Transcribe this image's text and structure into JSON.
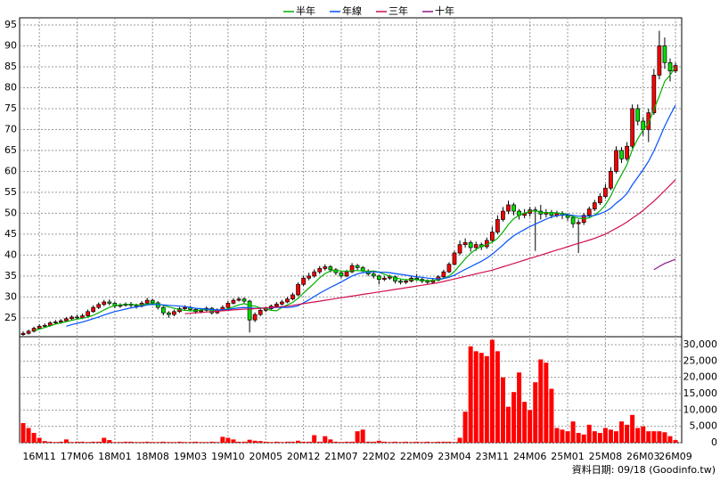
{
  "chart_data": {
    "type": "candlestick",
    "source": "資料日期: 09/18 (Goodinfo.tw)",
    "categories": [
      null,
      null,
      null,
      "16M11",
      null,
      null,
      null,
      null,
      null,
      null,
      "17M06",
      null,
      null,
      null,
      null,
      null,
      null,
      "18M01",
      null,
      null,
      null,
      null,
      null,
      null,
      "18M08",
      null,
      null,
      null,
      null,
      null,
      null,
      "19M03",
      null,
      null,
      null,
      null,
      null,
      null,
      "19M10",
      null,
      null,
      null,
      null,
      null,
      null,
      "20M05",
      null,
      null,
      null,
      null,
      null,
      null,
      "20M12",
      null,
      null,
      null,
      null,
      null,
      null,
      "21M07",
      null,
      null,
      null,
      null,
      null,
      null,
      "22M02",
      null,
      null,
      null,
      null,
      null,
      null,
      "22M09",
      null,
      null,
      null,
      null,
      null,
      null,
      "23M04",
      null,
      null,
      null,
      null,
      null,
      null,
      "23M11",
      null,
      null,
      null,
      null,
      null,
      null,
      "24M06",
      null,
      null,
      null,
      null,
      null,
      null,
      "25M01",
      null,
      null,
      null,
      null,
      null,
      null,
      "25M08",
      null,
      null,
      null,
      null,
      null,
      null,
      "26M03",
      null,
      null,
      null,
      null,
      null,
      "26M09"
    ],
    "open": [
      21.0,
      21.3,
      21.8,
      22.5,
      23.0,
      23.2,
      23.8,
      24.0,
      24.3,
      24.8,
      25.2,
      25.0,
      25.5,
      26.5,
      27.5,
      28.2,
      28.8,
      28.5,
      27.8,
      28.0,
      28.3,
      28.0,
      27.8,
      28.5,
      29.2,
      28.6,
      27.5,
      26.2,
      25.8,
      26.5,
      27.2,
      27.5,
      27.0,
      26.5,
      26.8,
      27.3,
      26.2,
      26.9,
      27.5,
      28.5,
      29.2,
      29.5,
      29.0,
      24.5,
      25.8,
      26.8,
      27.2,
      27.8,
      28.3,
      28.8,
      29.5,
      30.5,
      33.0,
      34.5,
      35.0,
      36.0,
      36.8,
      37.2,
      36.5,
      35.8,
      35.0,
      36.0,
      37.5,
      37.0,
      36.2,
      35.5,
      35.0,
      34.2,
      34.5,
      34.8,
      33.8,
      33.5,
      33.8,
      34.5,
      34.2,
      33.8,
      33.5,
      34.0,
      34.8,
      36.0,
      37.8,
      40.5,
      42.5,
      43.0,
      41.8,
      42.5,
      42.0,
      43.5,
      45.5,
      48.5,
      50.5,
      52.0,
      50.5,
      49.5,
      50.0,
      50.8,
      50.5,
      49.8,
      50.2,
      49.5,
      50.0,
      49.5,
      49.0,
      47.5,
      47.8,
      49.5,
      51.0,
      52.5,
      54.0,
      56.0,
      60.0,
      65.0,
      63.0,
      66.0,
      75.0,
      72.0,
      70.0,
      74.0,
      83.0,
      90.0,
      86.0,
      84.0
    ],
    "high": [
      21.8,
      22.2,
      22.9,
      23.5,
      23.7,
      24.2,
      24.5,
      24.7,
      25.2,
      25.6,
      25.7,
      26.0,
      27.0,
      28.0,
      28.7,
      29.3,
      29.4,
      28.9,
      28.5,
      28.7,
      28.8,
      28.4,
      29.0,
      29.8,
      29.6,
      29.0,
      27.8,
      26.6,
      27.0,
      27.6,
      28.0,
      27.9,
      27.3,
      27.2,
      27.7,
      27.6,
      27.3,
      28.0,
      29.0,
      29.7,
      30.0,
      29.9,
      29.3,
      26.3,
      27.2,
      27.7,
      28.2,
      28.8,
      29.3,
      30.0,
      31.0,
      33.5,
      35.0,
      35.8,
      36.6,
      37.4,
      37.8,
      37.6,
      36.9,
      36.2,
      36.5,
      38.1,
      37.9,
      37.4,
      36.6,
      36.0,
      35.3,
      35.0,
      35.3,
      35.1,
      34.2,
      34.3,
      35.0,
      35.5,
      34.6,
      34.2,
      34.5,
      35.2,
      36.5,
      38.3,
      41.0,
      43.5,
      44.0,
      43.5,
      43.2,
      43.0,
      44.2,
      46.8,
      49.5,
      51.5,
      53.0,
      52.5,
      51.0,
      51.0,
      51.5,
      51.5,
      52.0,
      51.0,
      50.8,
      50.6,
      50.5,
      50.0,
      49.5,
      48.5,
      50.0,
      51.6,
      53.2,
      54.8,
      57.0,
      61.0,
      66.0,
      65.8,
      67.0,
      76.0,
      76.0,
      73.0,
      75.0,
      84.5,
      93.6,
      92.0,
      87.0,
      86.0
    ],
    "low": [
      20.7,
      21.0,
      21.5,
      22.2,
      22.7,
      22.9,
      23.5,
      23.6,
      24.0,
      24.5,
      24.6,
      24.7,
      25.2,
      26.2,
      27.1,
      27.8,
      28.0,
      27.3,
      27.4,
      27.7,
      27.5,
      27.2,
      27.5,
      28.2,
      28.0,
      27.0,
      25.6,
      25.0,
      25.4,
      26.2,
      26.8,
      26.6,
      26.0,
      26.1,
      26.5,
      25.8,
      25.9,
      26.6,
      27.2,
      28.2,
      28.9,
      28.5,
      21.5,
      24.0,
      25.4,
      26.4,
      26.9,
      27.5,
      28.0,
      28.5,
      29.2,
      30.2,
      32.6,
      34.0,
      34.6,
      35.5,
      36.3,
      35.9,
      35.2,
      34.5,
      34.7,
      35.7,
      36.4,
      35.7,
      35.0,
      34.4,
      33.0,
      33.8,
      34.1,
      33.2,
      33.0,
      33.1,
      33.5,
      33.8,
      33.3,
      33.0,
      33.1,
      33.7,
      34.5,
      35.7,
      37.5,
      40.0,
      41.8,
      40.8,
      41.0,
      41.2,
      41.5,
      43.0,
      45.0,
      48.0,
      49.8,
      49.5,
      48.5,
      48.8,
      49.2,
      41.0,
      48.5,
      49.0,
      48.8,
      49.0,
      48.6,
      48.2,
      46.5,
      40.5,
      47.2,
      49.0,
      50.5,
      52.0,
      53.5,
      55.5,
      59.5,
      62.0,
      62.5,
      65.5,
      71.0,
      68.5,
      67.0,
      73.5,
      82.0,
      84.5,
      81.5,
      83.5
    ],
    "close": [
      21.3,
      21.8,
      22.5,
      23.0,
      23.2,
      23.8,
      24.0,
      24.3,
      24.8,
      25.2,
      25.0,
      25.5,
      26.5,
      27.5,
      28.2,
      28.8,
      28.5,
      27.8,
      28.0,
      28.3,
      28.0,
      27.8,
      28.5,
      29.2,
      28.6,
      27.5,
      26.2,
      25.8,
      26.5,
      27.2,
      27.5,
      27.0,
      26.5,
      26.8,
      27.3,
      26.2,
      26.9,
      27.5,
      28.5,
      29.2,
      29.5,
      29.0,
      24.5,
      25.8,
      26.8,
      27.2,
      27.8,
      28.3,
      28.8,
      29.5,
      30.5,
      33.0,
      34.5,
      35.0,
      36.0,
      36.8,
      37.2,
      36.5,
      35.8,
      35.0,
      36.0,
      37.5,
      37.0,
      36.2,
      35.5,
      35.0,
      34.2,
      34.5,
      34.8,
      33.8,
      33.5,
      33.8,
      34.5,
      34.2,
      33.8,
      33.5,
      34.0,
      34.8,
      36.0,
      37.8,
      40.5,
      42.5,
      43.0,
      41.8,
      42.5,
      42.0,
      43.5,
      45.5,
      48.5,
      50.5,
      52.0,
      50.5,
      49.5,
      50.0,
      50.8,
      50.5,
      49.8,
      50.2,
      49.5,
      50.0,
      49.5,
      49.0,
      47.5,
      47.8,
      49.5,
      51.0,
      52.5,
      54.0,
      56.0,
      60.0,
      65.0,
      63.0,
      66.0,
      75.0,
      72.0,
      70.0,
      74.0,
      83.0,
      90.0,
      86.0,
      84.0,
      85.3
    ],
    "volume": [
      6000,
      4500,
      3000,
      1500,
      500,
      300,
      200,
      300,
      1000,
      200,
      300,
      300,
      200,
      300,
      300,
      1500,
      800,
      200,
      200,
      300,
      300,
      200,
      200,
      300,
      200,
      200,
      300,
      200,
      200,
      300,
      200,
      200,
      300,
      200,
      200,
      300,
      200,
      1800,
      1500,
      1000,
      300,
      300,
      900,
      600,
      500,
      300,
      200,
      300,
      200,
      300,
      300,
      600,
      300,
      300,
      2300,
      300,
      2000,
      1000,
      300,
      200,
      300,
      300,
      3500,
      4000,
      300,
      300,
      600,
      300,
      200,
      300,
      200,
      300,
      200,
      300,
      200,
      300,
      200,
      300,
      300,
      300,
      200,
      1500,
      9500,
      29500,
      28000,
      27500,
      26500,
      31500,
      28000,
      20000,
      11000,
      15500,
      21500,
      12500,
      10000,
      18500,
      25500,
      24500,
      16500,
      4500,
      4000,
      3500,
      6500,
      3000,
      2500,
      5500,
      3500,
      3000,
      4500,
      4000,
      3500,
      6500,
      5500,
      8500,
      4500,
      5000,
      3500,
      3500,
      3500,
      3200,
      2000,
      800
    ],
    "up_color": "#ff0000",
    "down_color": "#00e000",
    "volume_color": "#ff0000",
    "series": [
      {
        "name": "半年",
        "color": "#00b000",
        "values": [
          null,
          null,
          21.9,
          22.3,
          22.7,
          23.1,
          23.5,
          23.8,
          24.1,
          24.4,
          24.7,
          24.9,
          25.2,
          25.6,
          26.2,
          26.9,
          27.5,
          27.9,
          28.1,
          28.2,
          28.2,
          28.1,
          28.1,
          28.3,
          28.4,
          28.3,
          28.0,
          27.6,
          27.3,
          27.0,
          26.8,
          26.7,
          26.7,
          26.9,
          27.0,
          26.9,
          26.8,
          26.9,
          27.2,
          27.6,
          28.1,
          28.4,
          28.0,
          27.8,
          27.4,
          27.2,
          26.8,
          26.7,
          27.5,
          28.1,
          28.7,
          29.7,
          30.9,
          32.1,
          33.3,
          34.6,
          35.6,
          36.2,
          36.4,
          36.2,
          36.1,
          36.3,
          36.3,
          36.2,
          36.1,
          36.2,
          35.9,
          35.4,
          35.0,
          34.6,
          34.3,
          34.1,
          34.2,
          34.1,
          34.0,
          33.9,
          33.9,
          34.1,
          34.4,
          35.0,
          36.1,
          37.6,
          39.1,
          40.4,
          41.4,
          42.0,
          42.5,
          43.1,
          44.0,
          45.5,
          47.3,
          48.7,
          49.5,
          50.0,
          50.5,
          50.6,
          50.2,
          50.1,
          50.1,
          50.1,
          49.9,
          49.7,
          49.2,
          48.8,
          48.7,
          48.9,
          49.6,
          50.6,
          52.0,
          54.1,
          56.9,
          59.2,
          61.6,
          65.2,
          67.8,
          69.9,
          71.5,
          74.8,
          78.0,
          81.5,
          83.0,
          85.0
        ]
      },
      {
        "name": "年線",
        "color": "#0050ff",
        "values": [
          null,
          null,
          null,
          null,
          null,
          null,
          null,
          null,
          23.0,
          23.4,
          23.7,
          24.0,
          24.4,
          24.8,
          25.2,
          25.7,
          26.1,
          26.5,
          26.8,
          27.1,
          27.4,
          27.6,
          27.8,
          28.1,
          28.2,
          28.2,
          28.1,
          28.0,
          27.9,
          27.8,
          27.7,
          27.5,
          27.3,
          27.2,
          27.1,
          27.0,
          26.9,
          26.9,
          27.0,
          27.2,
          27.4,
          27.5,
          27.4,
          27.3,
          27.3,
          27.4,
          27.4,
          27.5,
          27.5,
          27.5,
          27.6,
          27.9,
          28.6,
          29.3,
          30.1,
          30.9,
          31.6,
          32.3,
          32.9,
          33.6,
          34.3,
          35.0,
          35.5,
          35.8,
          35.9,
          36.0,
          35.9,
          35.9,
          35.8,
          35.6,
          35.4,
          35.2,
          35.0,
          34.8,
          34.7,
          34.5,
          34.4,
          34.3,
          34.4,
          34.7,
          35.2,
          35.9,
          36.6,
          37.2,
          37.9,
          38.5,
          39.3,
          40.2,
          41.3,
          42.4,
          43.6,
          44.6,
          45.4,
          46.1,
          46.8,
          47.4,
          48.0,
          48.6,
          49.1,
          49.4,
          49.6,
          49.7,
          49.5,
          49.3,
          49.3,
          49.3,
          49.5,
          49.9,
          50.4,
          51.2,
          52.4,
          53.4,
          54.7,
          56.8,
          58.6,
          60.4,
          62.4,
          64.9,
          67.8,
          70.8,
          73.4,
          75.8
        ]
      },
      {
        "name": "三年",
        "color": "#d0104a",
        "values": [
          null,
          null,
          null,
          null,
          null,
          null,
          null,
          null,
          null,
          null,
          null,
          null,
          null,
          null,
          null,
          null,
          null,
          null,
          null,
          null,
          null,
          null,
          null,
          null,
          null,
          null,
          null,
          null,
          null,
          null,
          26.0,
          26.1,
          26.2,
          26.3,
          26.4,
          26.5,
          26.6,
          26.7,
          26.8,
          26.9,
          27.0,
          27.1,
          27.1,
          27.2,
          27.3,
          27.4,
          27.5,
          27.6,
          27.7,
          27.8,
          28.0,
          28.2,
          28.4,
          28.6,
          28.8,
          29.0,
          29.2,
          29.4,
          29.6,
          29.8,
          30.0,
          30.2,
          30.4,
          30.6,
          30.8,
          31.0,
          31.2,
          31.4,
          31.6,
          31.8,
          32.0,
          32.2,
          32.4,
          32.6,
          32.8,
          33.0,
          33.2,
          33.4,
          33.7,
          34.0,
          34.3,
          34.6,
          34.9,
          35.2,
          35.5,
          35.8,
          36.1,
          36.4,
          36.8,
          37.2,
          37.6,
          38.0,
          38.4,
          38.8,
          39.2,
          39.6,
          40.0,
          40.4,
          40.8,
          41.2,
          41.6,
          42.0,
          42.4,
          42.8,
          43.2,
          43.6,
          44.0,
          44.5,
          45.0,
          45.7,
          46.4,
          47.1,
          47.9,
          48.8,
          49.7,
          50.7,
          51.8,
          52.9,
          54.1,
          55.4,
          56.7,
          58.0
        ]
      },
      {
        "name": "十年",
        "color": "#8a1a8a",
        "values": [
          null,
          null,
          null,
          null,
          null,
          null,
          null,
          null,
          null,
          null,
          null,
          null,
          null,
          null,
          null,
          null,
          null,
          null,
          null,
          null,
          null,
          null,
          null,
          null,
          null,
          null,
          null,
          null,
          null,
          null,
          null,
          null,
          null,
          null,
          null,
          null,
          null,
          null,
          null,
          null,
          null,
          null,
          null,
          null,
          null,
          null,
          null,
          null,
          null,
          null,
          null,
          null,
          null,
          null,
          null,
          null,
          null,
          null,
          null,
          null,
          null,
          null,
          null,
          null,
          null,
          null,
          null,
          null,
          null,
          null,
          null,
          null,
          null,
          null,
          null,
          null,
          null,
          null,
          null,
          null,
          null,
          null,
          null,
          null,
          null,
          null,
          null,
          null,
          null,
          null,
          null,
          null,
          null,
          null,
          null,
          null,
          null,
          null,
          null,
          null,
          null,
          null,
          null,
          null,
          null,
          null,
          null,
          null,
          null,
          null,
          null,
          null,
          null,
          null,
          null,
          null,
          null,
          36.5,
          37.3,
          38.0,
          38.5,
          39.0
        ]
      }
    ],
    "ylim": [
      20.5,
      96.7
    ],
    "yticks": [
      25,
      30,
      35,
      40,
      45,
      50,
      55,
      60,
      65,
      70,
      75,
      80,
      85,
      90,
      95
    ],
    "y2lim": [
      0,
      32450
    ],
    "y2ticks": [
      0,
      {
        "value": 5000,
        "label": "5,000"
      },
      {
        "value": 10000,
        "label": "10,000"
      },
      {
        "value": 15000,
        "label": "15,000"
      },
      {
        "value": 20000,
        "label": "20,000"
      },
      {
        "value": 25000,
        "label": "25,000"
      },
      {
        "value": 30000,
        "label": "30,000"
      }
    ],
    "grid": true
  }
}
